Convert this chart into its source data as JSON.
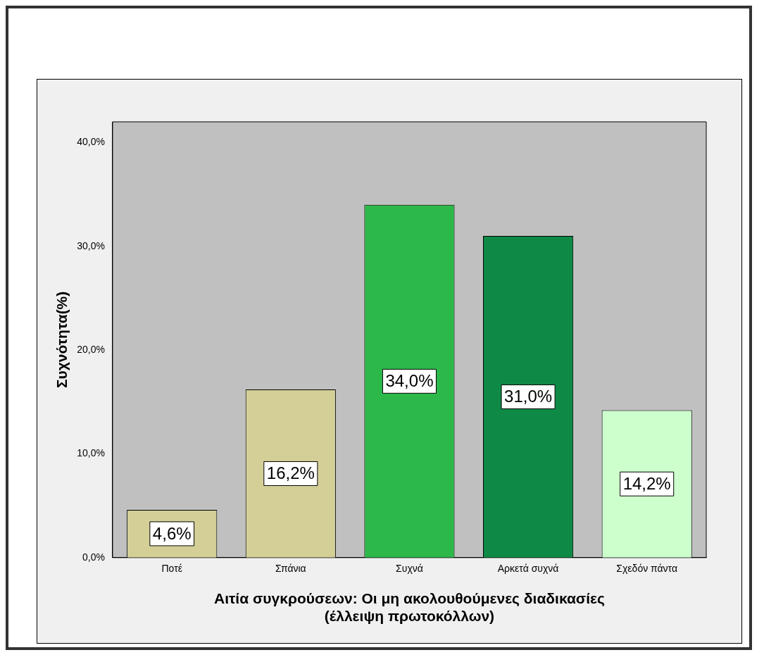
{
  "chart_data": {
    "type": "bar",
    "categories": [
      "Ποτέ",
      "Σπάνια",
      "Συχνά",
      "Αρκετά συχνά",
      "Σχεδόν πάντα"
    ],
    "values": [
      4.6,
      16.2,
      34.0,
      31.0,
      14.2
    ],
    "colors": [
      "#d3cf97",
      "#d3cf97",
      "#2db84a",
      "#0f8a46",
      "#ccffcc"
    ],
    "value_labels": [
      "4,6%",
      "16,2%",
      "34,0%",
      "31,0%",
      "14,2%"
    ],
    "ylabel": "Συχνότητα(%)",
    "xlabel": "Αιτία συγκρούσεων: Οι μη ακολουθούμενες διαδικασίες\n(έλλειψη πρωτοκόλλων)",
    "ylim": [
      0,
      42
    ],
    "yticks": [
      {
        "value": 0,
        "label": "0,0%"
      },
      {
        "value": 10,
        "label": "10,0%"
      },
      {
        "value": 20,
        "label": "20,0%"
      },
      {
        "value": 30,
        "label": "30,0%"
      },
      {
        "value": 40,
        "label": "40,0%"
      }
    ],
    "grid": false,
    "legend": false
  }
}
